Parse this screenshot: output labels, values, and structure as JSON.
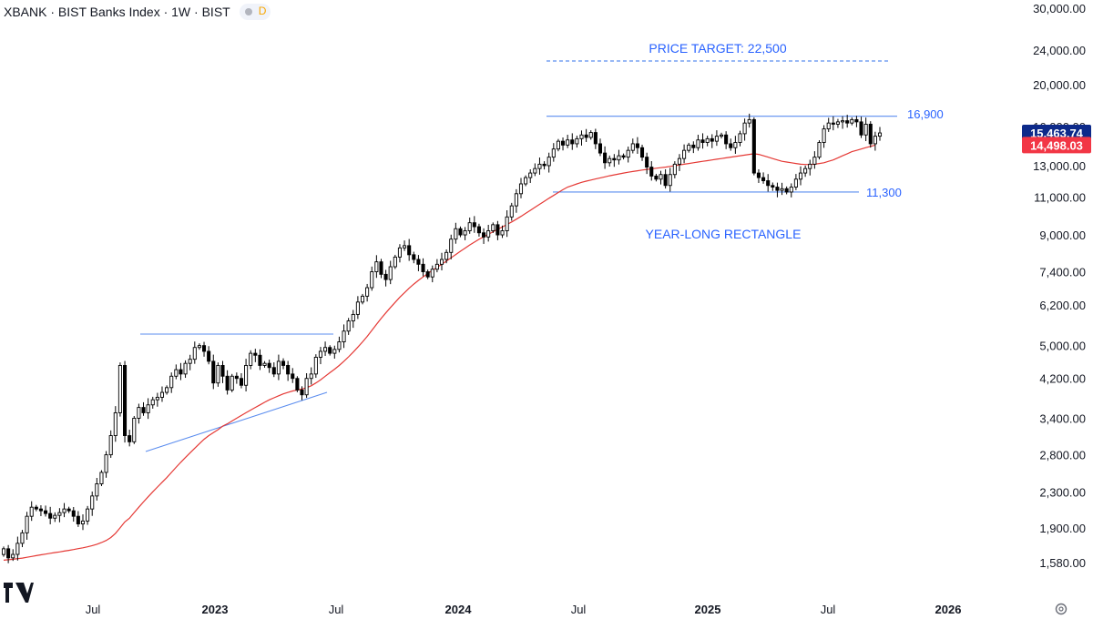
{
  "header": {
    "title": "XBANK · BIST Banks Index · 1W · BIST",
    "badge_label": "D"
  },
  "chart_data": {
    "type": "candlestick",
    "scale": "log",
    "y_ticks": [
      "30,000.00",
      "24,000.00",
      "20,000.00",
      "16,000.00",
      "13,000.00",
      "11,000.00",
      "9,000.00",
      "7,400.00",
      "6,200.00",
      "5,000.00",
      "4,200.00",
      "3,400.00",
      "2,800.00",
      "2,300.00",
      "1,900.00",
      "1,580.00"
    ],
    "x_ticks": [
      "Jul",
      "2023",
      "Jul",
      "2024",
      "Jul",
      "2025",
      "Jul",
      "2026"
    ],
    "last_price": "15,463.74",
    "ma_value": "14,498.03",
    "annotations": {
      "price_target": "PRICE TARGET: 22,500",
      "resistance": "16,900",
      "support": "11,300",
      "pattern": "YEAR-LONG RECTANGLE"
    },
    "closes": [
      1700,
      1620,
      1650,
      1750,
      1850,
      2020,
      2120,
      2100,
      2080,
      2050,
      2000,
      2030,
      2060,
      2100,
      2080,
      2020,
      1940,
      1970,
      2100,
      2250,
      2400,
      2550,
      2800,
      3100,
      3500,
      4500,
      3100,
      3000,
      3400,
      3600,
      3500,
      3650,
      3750,
      3800,
      3900,
      4000,
      4250,
      4400,
      4300,
      4550,
      4650,
      4950,
      5000,
      4850,
      4600,
      4100,
      4500,
      4250,
      3950,
      4250,
      4200,
      4050,
      4500,
      4800,
      4750,
      4500,
      4550,
      4450,
      4300,
      4600,
      4500,
      4300,
      4200,
      3950,
      3850,
      4200,
      4300,
      4700,
      4850,
      4950,
      4800,
      4900,
      5100,
      5400,
      5700,
      5900,
      6300,
      6500,
      6800,
      7400,
      7800,
      7300,
      7100,
      7600,
      8000,
      8400,
      8500,
      8100,
      7900,
      7700,
      7400,
      7200,
      7500,
      7700,
      7900,
      8200,
      8800,
      9300,
      9000,
      9200,
      9600,
      9400,
      9100,
      8900,
      9200,
      9500,
      9000,
      9200,
      9900,
      10500,
      11200,
      11800,
      12200,
      12500,
      12800,
      13100,
      13000,
      13600,
      14200,
      14800,
      14500,
      14900,
      14600,
      15000,
      15300,
      15100,
      15500,
      14600,
      13900,
      13200,
      13500,
      13400,
      13700,
      13600,
      14100,
      14600,
      14300,
      13600,
      12900,
      12300,
      12100,
      12400,
      11700,
      12400,
      13100,
      13500,
      14100,
      14500,
      14300,
      14900,
      14700,
      15000,
      14800,
      15200,
      15300,
      14600,
      14300,
      14700,
      15400,
      16300,
      16600,
      12500,
      12200,
      12000,
      11700,
      11600,
      11400,
      11500,
      11300,
      11600,
      12100,
      12500,
      12800,
      13100,
      13600,
      14700,
      15800,
      16300,
      16200,
      16400,
      16500,
      16300,
      16600,
      16400,
      15300,
      16200,
      14600,
      15200,
      15463.74
    ],
    "moving_average": [
      1600,
      1604,
      1608,
      1613,
      1618,
      1625,
      1632,
      1639,
      1646,
      1653,
      1660,
      1666,
      1672,
      1679,
      1686,
      1693,
      1701,
      1709,
      1718,
      1729,
      1741,
      1757,
      1777,
      1805,
      1845,
      1900,
      1960,
      2000,
      2060,
      2120,
      2180,
      2240,
      2300,
      2360,
      2420,
      2480,
      2550,
      2620,
      2690,
      2760,
      2830,
      2900,
      2970,
      3040,
      3100,
      3150,
      3200,
      3260,
      3300,
      3350,
      3400,
      3450,
      3500,
      3550,
      3600,
      3650,
      3700,
      3750,
      3790,
      3830,
      3870,
      3900,
      3930,
      3950,
      3970,
      4000,
      4040,
      4100,
      4170,
      4250,
      4330,
      4410,
      4500,
      4600,
      4710,
      4830,
      4960,
      5100,
      5250,
      5420,
      5600,
      5780,
      5950,
      6120,
      6290,
      6460,
      6620,
      6780,
      6930,
      7070,
      7200,
      7330,
      7460,
      7580,
      7700,
      7830,
      7970,
      8110,
      8250,
      8390,
      8530,
      8660,
      8790,
      8910,
      9030,
      9150,
      9270,
      9390,
      9510,
      9640,
      9780,
      9930,
      10090,
      10250,
      10420,
      10590,
      10760,
      10930,
      11100,
      11270,
      11440,
      11600,
      11700,
      11800,
      11900,
      11970,
      12040,
      12110,
      12180,
      12250,
      12320,
      12380,
      12440,
      12500,
      12550,
      12600,
      12650,
      12700,
      12740,
      12780,
      12820,
      12860,
      12900,
      12950,
      13000,
      13050,
      13100,
      13150,
      13200,
      13250,
      13300,
      13350,
      13400,
      13450,
      13500,
      13550,
      13600,
      13650,
      13700,
      13750,
      13800,
      13850,
      13800,
      13700,
      13600,
      13500,
      13400,
      13300,
      13250,
      13200,
      13150,
      13100,
      13080,
      13080,
      13100,
      13150,
      13200,
      13300,
      13400,
      13550,
      13700,
      13850,
      14000,
      14100,
      14200,
      14300,
      14400,
      14498.03
    ]
  },
  "colors": {
    "bull_body": "#ffffff",
    "candle_stroke": "#000000",
    "bear_body": "#000000",
    "ma_line": "#e53935",
    "trendline": "#5b8def",
    "annotation_text": "#2962ff",
    "last_price_bg": "#0d2a8a",
    "ma_label_bg": "#f23645"
  },
  "footer": {
    "settings_icon": "gear-icon"
  }
}
